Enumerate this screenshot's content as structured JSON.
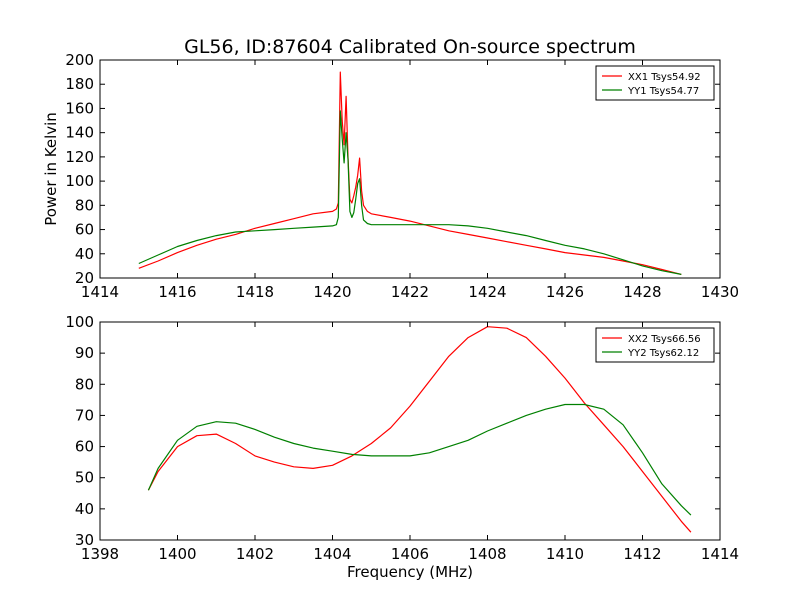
{
  "figure": {
    "title": "GL56, ID:87604 Calibrated On-source spectrum",
    "xlabel": "Frequency (MHz)"
  },
  "chart_data": [
    {
      "type": "line",
      "title": "GL56, ID:87604 Calibrated On-source spectrum",
      "xlabel": "",
      "ylabel": "Power in Kelvin",
      "xlim": [
        1414,
        1430
      ],
      "ylim": [
        20,
        200
      ],
      "xticks": [
        1414,
        1416,
        1418,
        1420,
        1422,
        1424,
        1426,
        1428,
        1430
      ],
      "yticks": [
        20,
        40,
        60,
        80,
        100,
        120,
        140,
        160,
        180,
        200
      ],
      "legend": "top-right",
      "grid": false,
      "series": [
        {
          "name": "XX1 Tsys54.92",
          "color": "#ff0000",
          "x": [
            1415.0,
            1415.5,
            1416.0,
            1416.5,
            1417.0,
            1417.5,
            1418.0,
            1418.5,
            1419.0,
            1419.5,
            1420.0,
            1420.1,
            1420.15,
            1420.2,
            1420.25,
            1420.3,
            1420.35,
            1420.4,
            1420.45,
            1420.5,
            1420.55,
            1420.6,
            1420.65,
            1420.7,
            1420.75,
            1420.8,
            1420.9,
            1421.0,
            1421.5,
            1422.0,
            1422.5,
            1423.0,
            1423.5,
            1424.0,
            1424.5,
            1425.0,
            1425.5,
            1426.0,
            1426.5,
            1427.0,
            1427.5,
            1428.0,
            1428.5,
            1429.0
          ],
          "y": [
            28,
            34,
            41,
            47,
            52,
            56,
            61,
            65,
            69,
            73,
            75,
            77,
            82,
            190,
            150,
            130,
            170,
            120,
            85,
            82,
            88,
            95,
            105,
            119,
            92,
            80,
            75,
            73,
            70,
            67,
            63,
            59,
            56,
            53,
            50,
            47,
            44,
            41,
            39,
            37,
            34,
            31,
            27,
            23
          ]
        },
        {
          "name": "YY1 Tsys54.77",
          "color": "#008000",
          "x": [
            1415.0,
            1415.5,
            1416.0,
            1416.5,
            1417.0,
            1417.5,
            1418.0,
            1418.5,
            1419.0,
            1419.5,
            1420.0,
            1420.1,
            1420.15,
            1420.2,
            1420.25,
            1420.3,
            1420.35,
            1420.4,
            1420.45,
            1420.5,
            1420.55,
            1420.6,
            1420.65,
            1420.7,
            1420.75,
            1420.8,
            1420.9,
            1421.0,
            1421.5,
            1422.0,
            1422.5,
            1423.0,
            1423.5,
            1424.0,
            1424.5,
            1425.0,
            1425.5,
            1426.0,
            1426.5,
            1427.0,
            1427.5,
            1428.0,
            1428.5,
            1429.0
          ],
          "y": [
            32,
            39,
            46,
            51,
            55,
            58,
            59,
            60,
            61,
            62,
            63,
            64,
            70,
            158,
            135,
            115,
            140,
            118,
            75,
            70,
            74,
            85,
            98,
            102,
            80,
            68,
            65,
            64,
            64,
            64,
            64,
            64,
            63,
            61,
            58,
            55,
            51,
            47,
            44,
            40,
            35,
            30,
            26,
            23
          ]
        }
      ]
    },
    {
      "type": "line",
      "title": "",
      "xlabel": "Frequency (MHz)",
      "ylabel": "",
      "xlim": [
        1398,
        1414
      ],
      "ylim": [
        30,
        100
      ],
      "xticks": [
        1398,
        1400,
        1402,
        1404,
        1406,
        1408,
        1410,
        1412,
        1414
      ],
      "yticks": [
        30,
        40,
        50,
        60,
        70,
        80,
        90,
        100
      ],
      "legend": "top-right",
      "grid": false,
      "series": [
        {
          "name": "XX2 Tsys66.56",
          "color": "#ff0000",
          "x": [
            1399.25,
            1399.5,
            1400.0,
            1400.5,
            1401.0,
            1401.5,
            1402.0,
            1402.5,
            1403.0,
            1403.5,
            1404.0,
            1404.5,
            1405.0,
            1405.5,
            1406.0,
            1406.5,
            1407.0,
            1407.5,
            1408.0,
            1408.5,
            1409.0,
            1409.5,
            1410.0,
            1410.5,
            1411.0,
            1411.5,
            1412.0,
            1412.5,
            1413.0,
            1413.25
          ],
          "y": [
            46,
            52,
            60,
            63.5,
            64,
            61,
            57,
            55,
            53.5,
            53,
            54,
            57,
            61,
            66,
            73,
            81,
            89,
            95,
            98.5,
            98,
            95,
            89,
            82,
            74,
            67,
            60,
            52,
            44,
            36,
            32.5
          ]
        },
        {
          "name": "YY2 Tsys62.12",
          "color": "#008000",
          "x": [
            1399.25,
            1399.5,
            1400.0,
            1400.5,
            1401.0,
            1401.5,
            1402.0,
            1402.5,
            1403.0,
            1403.5,
            1404.0,
            1404.5,
            1405.0,
            1405.5,
            1406.0,
            1406.5,
            1407.0,
            1407.5,
            1408.0,
            1408.5,
            1409.0,
            1409.5,
            1410.0,
            1410.5,
            1411.0,
            1411.5,
            1412.0,
            1412.5,
            1413.0,
            1413.25
          ],
          "y": [
            46,
            53,
            62,
            66.5,
            68,
            67.5,
            65.5,
            63,
            61,
            59.5,
            58.5,
            57.5,
            57,
            57,
            57,
            58,
            60,
            62,
            65,
            67.5,
            70,
            72,
            73.5,
            73.5,
            72,
            67,
            58,
            48,
            41,
            38
          ]
        }
      ]
    }
  ]
}
